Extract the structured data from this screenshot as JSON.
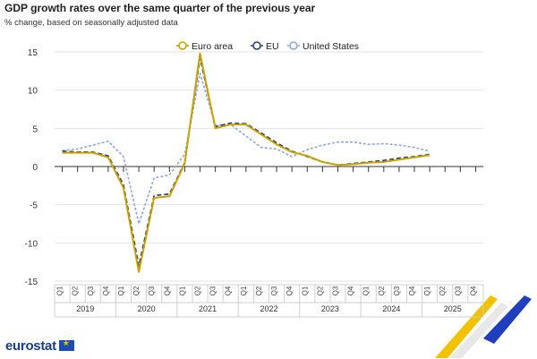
{
  "title": "GDP growth rates over the same quarter of the previous year",
  "subtitle": "% change, based on seasonally adjusted data",
  "brand": {
    "name": "eurostat",
    "flag_color": "#1a4fb0"
  },
  "chart_data": {
    "type": "line",
    "ylim": [
      -15,
      15
    ],
    "yticks": [
      15,
      10,
      5,
      0,
      -5,
      -10,
      -15
    ],
    "grid": true,
    "legend_position": "top-center",
    "years": [
      "2019",
      "2020",
      "2021",
      "2022",
      "2023",
      "2024",
      "2025"
    ],
    "quarters": [
      "Q1",
      "Q2",
      "Q3",
      "Q4"
    ],
    "x": [
      "2019-Q1",
      "2019-Q2",
      "2019-Q3",
      "2019-Q4",
      "2020-Q1",
      "2020-Q2",
      "2020-Q3",
      "2020-Q4",
      "2021-Q1",
      "2021-Q2",
      "2021-Q3",
      "2021-Q4",
      "2022-Q1",
      "2022-Q2",
      "2022-Q3",
      "2022-Q4",
      "2023-Q1",
      "2023-Q2",
      "2023-Q3",
      "2023-Q4",
      "2024-Q1",
      "2024-Q2",
      "2024-Q3",
      "2024-Q4",
      "2025-Q1",
      "2025-Q2",
      "2025-Q3",
      "2025-Q4"
    ],
    "series": [
      {
        "name": "Euro area",
        "color": "#c9a200",
        "dash": "solid",
        "values": [
          1.8,
          1.8,
          1.8,
          1.2,
          -2.8,
          -13.8,
          -4.1,
          -3.9,
          0.4,
          14.8,
          5.0,
          5.5,
          5.5,
          4.2,
          2.9,
          1.9,
          1.4,
          0.6,
          0.2,
          0.3,
          0.5,
          0.6,
          0.9,
          1.2,
          1.5,
          null,
          null,
          null
        ]
      },
      {
        "name": "EU",
        "color": "#1f3a7a",
        "dash": "dashed",
        "values": [
          2.0,
          1.9,
          1.9,
          1.4,
          -2.4,
          -13.0,
          -3.8,
          -3.6,
          0.5,
          14.2,
          5.2,
          5.7,
          5.6,
          4.4,
          3.1,
          2.0,
          1.3,
          0.6,
          0.2,
          0.4,
          0.6,
          0.8,
          1.1,
          1.3,
          1.6,
          null,
          null,
          null
        ]
      },
      {
        "name": "United States",
        "color": "#8fa6d8",
        "dash": "dotted",
        "values": [
          2.1,
          2.3,
          2.8,
          3.3,
          1.3,
          -7.5,
          -1.5,
          -1.1,
          1.6,
          12.2,
          5.4,
          5.5,
          4.0,
          2.5,
          2.3,
          1.3,
          2.2,
          2.8,
          3.2,
          3.2,
          2.9,
          3.0,
          2.8,
          2.5,
          2.0,
          null,
          null,
          null
        ]
      }
    ]
  }
}
